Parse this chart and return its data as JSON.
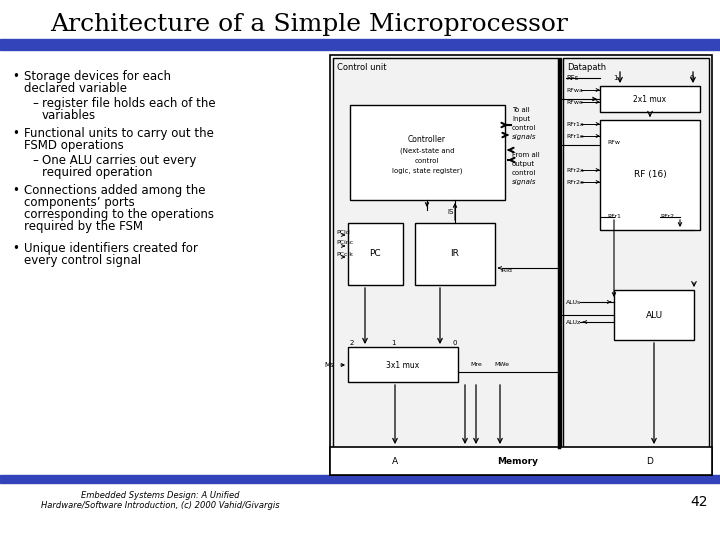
{
  "title": "Architecture of a Simple Microprocessor",
  "title_fontsize": 18,
  "title_font": "serif",
  "bg_color": "#ffffff",
  "header_bar_color": "#3344bb",
  "footer_bar_color": "#3344bb",
  "bullet_points": [
    "Storage devices for each\ndeclared variable",
    "register file holds each of the\nvariables",
    "Functional units to carry out the\nFSMD operations",
    "One ALU carries out every\nrequired operation",
    "Connections added among the\ncomponents’ ports\ncorresponding to the operations\nrequired by the FSM",
    "Unique identifiers created for\nevery control signal"
  ],
  "footer_line1": "Embedded Systems Design: A Unified",
  "footer_line2": "Hardware/Software Introduction, (c) 2000 Vahid/Givargis",
  "page_number": "42"
}
